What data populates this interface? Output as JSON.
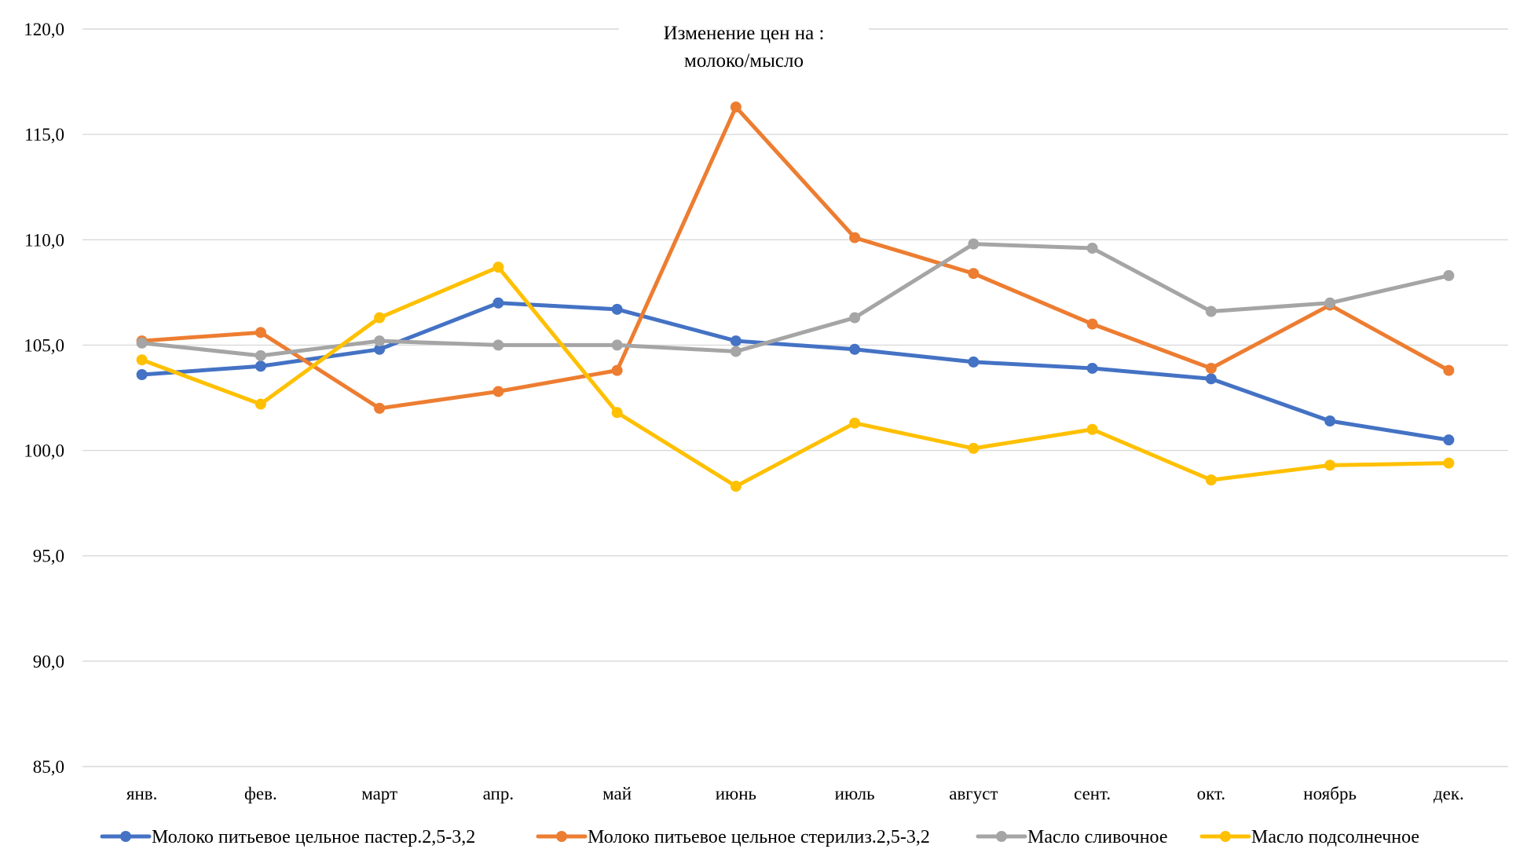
{
  "chart_data": {
    "type": "line",
    "title_lines": [
      "Изменение цен на :",
      "молоко/мысло"
    ],
    "xlabel": "",
    "ylabel": "",
    "ylim": [
      85,
      120
    ],
    "ytick_values": [
      85,
      90,
      95,
      100,
      105,
      110,
      115,
      120
    ],
    "ytick_labels": [
      "85,0",
      "90,0",
      "95,0",
      "100,0",
      "105,0",
      "110,0",
      "115,0",
      "120,0"
    ],
    "grid": true,
    "legend_position": "bottom",
    "categories": [
      "янв.",
      "фев.",
      "март",
      "апр.",
      "май",
      "июнь",
      "июль",
      "август",
      "сент.",
      "окт.",
      "ноябрь",
      "дек."
    ],
    "series": [
      {
        "name": "Молоко питьевое цельное пастер.2,5-3,2",
        "color": "#4472C4",
        "values": [
          103.6,
          104.0,
          104.8,
          107.0,
          106.7,
          105.2,
          104.8,
          104.2,
          103.9,
          103.4,
          101.4,
          100.5
        ]
      },
      {
        "name": "Молоко питьевое цельное стерилиз.2,5-3,2",
        "color": "#ED7D31",
        "values": [
          105.2,
          105.6,
          102.0,
          102.8,
          103.8,
          116.3,
          110.1,
          108.4,
          106.0,
          103.9,
          106.9,
          103.8
        ]
      },
      {
        "name": "Масло сливочное",
        "color": "#A5A5A5",
        "values": [
          105.1,
          104.5,
          105.2,
          105.0,
          105.0,
          104.7,
          106.3,
          109.8,
          109.6,
          106.6,
          107.0,
          108.3
        ]
      },
      {
        "name": "Масло подсолнечное",
        "color": "#FFC000",
        "values": [
          104.3,
          102.2,
          106.3,
          108.7,
          101.8,
          98.3,
          101.3,
          100.1,
          101.0,
          98.6,
          99.3,
          99.4
        ]
      }
    ]
  }
}
